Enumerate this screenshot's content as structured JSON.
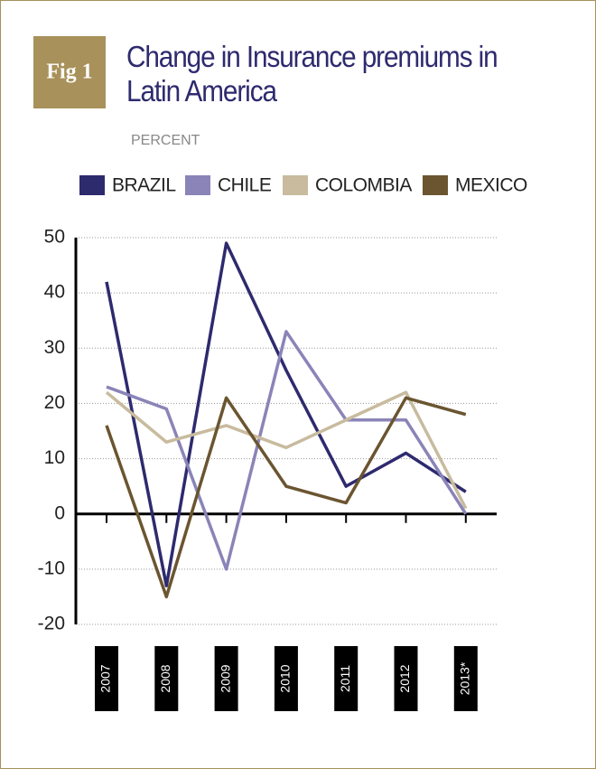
{
  "chart_data": {
    "type": "line",
    "badge": "Fig 1",
    "title": "Change in Insurance premiums in Latin America",
    "subtitle": "PERCENT",
    "categories": [
      "2007",
      "2008",
      "2009",
      "2010",
      "2011",
      "2012",
      "2013*"
    ],
    "series": [
      {
        "name": "BRAZIL",
        "color": "#2e2a6e",
        "values": [
          42,
          -13,
          49,
          26,
          5,
          11,
          4
        ]
      },
      {
        "name": "CHILE",
        "color": "#8a84b8",
        "values": [
          23,
          19,
          -10,
          33,
          17,
          17,
          0
        ]
      },
      {
        "name": "COLOMBIA",
        "color": "#c8bb9e",
        "values": [
          22,
          13,
          16,
          12,
          17,
          22,
          1
        ]
      },
      {
        "name": "MEXICO",
        "color": "#6b5530",
        "values": [
          16,
          -15,
          21,
          5,
          2,
          21,
          18
        ]
      }
    ],
    "ylim": [
      -20,
      50
    ],
    "yticks": [
      -20,
      -10,
      0,
      10,
      20,
      30,
      40,
      50
    ],
    "grid": true
  }
}
